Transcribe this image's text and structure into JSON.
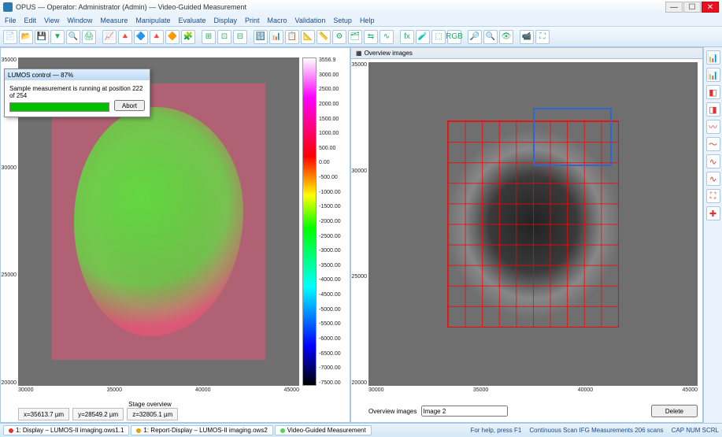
{
  "window": {
    "app": "OPUS",
    "title": "Operator: Administrator (Admin) — Video-Guided Measurement",
    "controls": {
      "min": "—",
      "max": "☐",
      "close": "✕"
    }
  },
  "menu": [
    "File",
    "Edit",
    "View",
    "Window",
    "Measure",
    "Manipulate",
    "Evaluate",
    "Display",
    "Print",
    "Macro",
    "Validation",
    "Setup",
    "Help"
  ],
  "toolbar_icons": [
    "📄",
    "📂",
    "💾",
    "▼",
    "🔍",
    "🖨",
    "|",
    "📈",
    "🔺",
    "🔷",
    "🔺",
    "🔶",
    "🧩",
    "|",
    "⊞",
    "⊡",
    "⊟",
    "|",
    "🔢",
    "📊",
    "📋",
    "📐",
    "📏",
    "⚙",
    "🗂",
    "⇆",
    "∿",
    "|",
    "fx",
    "🧪",
    "⬚",
    "RGB",
    "|",
    "🔎",
    "🔍",
    "👁",
    "|",
    "📹",
    "⛶"
  ],
  "sidetools": [
    "📊",
    "📊",
    "◧",
    "◨",
    "〰",
    "〜",
    "∿",
    "∿",
    "⛶",
    "✚"
  ],
  "left": {
    "y_ticks": [
      "35000",
      "30000",
      "25000",
      "20000"
    ],
    "x_ticks": [
      "30000",
      "35000",
      "40000",
      "45000"
    ],
    "x_label": "Stage overview",
    "controls": [
      "x=35613.7 µm",
      "y=28549.2 µm",
      "z=32805.1 µm"
    ]
  },
  "colorbar": {
    "labels": [
      "3556.9",
      "3000.00",
      "2500.00",
      "2000.00",
      "1500.00",
      "1000.00",
      "500.00",
      "0.00",
      "-500.00",
      "-1000.00",
      "-1500.00",
      "-2000.00",
      "-2500.00",
      "-3000.00",
      "-3500.00",
      "-4000.00",
      "-4500.00",
      "-5000.00",
      "-5500.00",
      "-6000.00",
      "-6500.00",
      "-7000.00",
      "-7500.00"
    ]
  },
  "right": {
    "header_icon": "▦",
    "header": "Overview images",
    "y_ticks": [
      "35000",
      "30000",
      "25000",
      "20000"
    ],
    "x_ticks": [
      "30000",
      "35000",
      "40000",
      "45000"
    ],
    "x_label": "Overview images",
    "select_label": "Image",
    "select_value": "Image 2",
    "delete": "Delete"
  },
  "dialog": {
    "title": "LUMOS control — 87%",
    "message": "Sample measurement is running at position 222 of 254",
    "abort": "Abort"
  },
  "tasks": [
    {
      "color": "#d33",
      "label": "1: Display – LUMOS-II imaging.ows1.1"
    },
    {
      "color": "#e8a000",
      "label": "1: Report-Display – LUMOS-II imaging.ows2"
    },
    {
      "color": "#5ad05a",
      "label": "Video-Guided Measurement"
    }
  ],
  "status": {
    "left": "For help, press F1",
    "center": "Continuous Scan IFG Measurements 206 scans",
    "right": "CAP NUM SCRL"
  }
}
